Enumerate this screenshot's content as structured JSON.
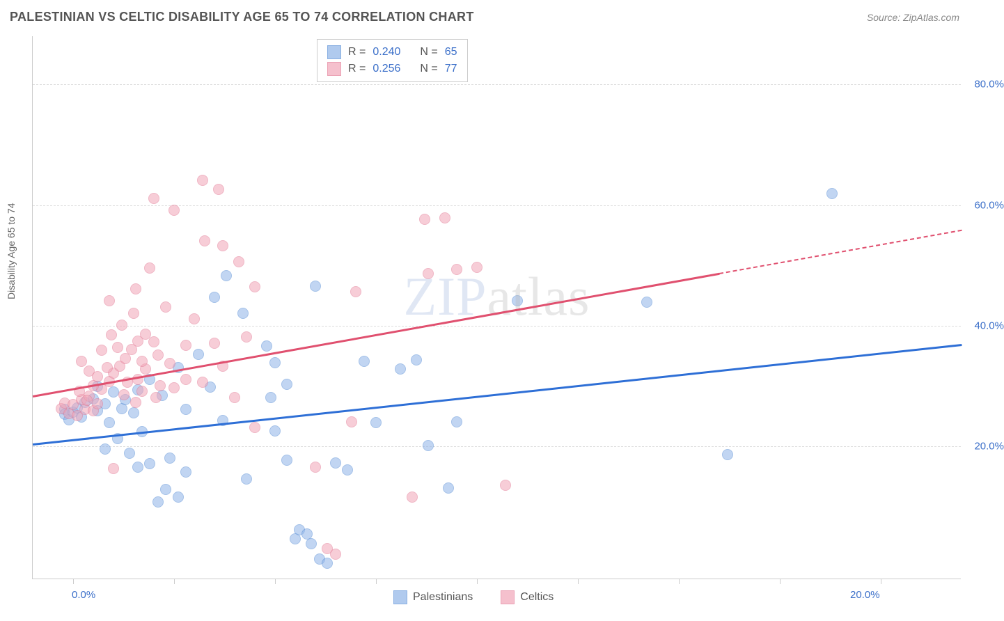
{
  "header": {
    "title": "PALESTINIAN VS CELTIC DISABILITY AGE 65 TO 74 CORRELATION CHART",
    "source": "Source: ZipAtlas.com"
  },
  "chart": {
    "type": "scatter",
    "ylabel": "Disability Age 65 to 74",
    "xlim": [
      -1,
      22
    ],
    "ylim": [
      -2,
      88
    ],
    "xticks": [
      0,
      2.5,
      5,
      7.5,
      10,
      12.5,
      15,
      17.5,
      20
    ],
    "xtick_labels": {
      "0": "0.0%",
      "20": "20.0%"
    },
    "yticks": [
      20,
      40,
      60,
      80
    ],
    "ytick_labels": {
      "20": "20.0%",
      "40": "40.0%",
      "60": "60.0%",
      "80": "80.0%"
    },
    "grid_color": "#dddddd",
    "background_color": "#ffffff",
    "axis_color": "#cccccc",
    "tick_label_color": "#3b6fc9",
    "tick_label_fontsize": 15,
    "axis_label_fontsize": 14,
    "marker_radius": 8,
    "marker_opacity": 0.55,
    "watermark": "ZIPatlas",
    "series": [
      {
        "name": "Palestinians",
        "color_fill": "#8fb4e8",
        "color_stroke": "#5a8fd6",
        "trend_color": "#2e6fd6",
        "trend": {
          "x1": -1,
          "y1": 20.5,
          "x2": 22,
          "y2": 37,
          "solid_until_x": 22
        },
        "legend_stats": {
          "R": "0.240",
          "N": "65"
        },
        "points": [
          [
            -0.2,
            26
          ],
          [
            -0.2,
            25.2
          ],
          [
            -0.1,
            24.3
          ],
          [
            0.0,
            25.6
          ],
          [
            0.1,
            26.3
          ],
          [
            0.2,
            24.8
          ],
          [
            0.3,
            27.2
          ],
          [
            0.5,
            27.8
          ],
          [
            0.6,
            25.8
          ],
          [
            0.8,
            27.0
          ],
          [
            0.9,
            23.8
          ],
          [
            1.0,
            28.9
          ],
          [
            1.2,
            26.2
          ],
          [
            1.3,
            27.6
          ],
          [
            1.5,
            25.5
          ],
          [
            1.6,
            29.3
          ],
          [
            0.8,
            19.5
          ],
          [
            1.1,
            21.2
          ],
          [
            1.4,
            18.8
          ],
          [
            1.7,
            22.4
          ],
          [
            1.9,
            17.0
          ],
          [
            2.1,
            10.7
          ],
          [
            2.3,
            12.8
          ],
          [
            2.6,
            11.5
          ],
          [
            2.8,
            15.6
          ],
          [
            1.6,
            16.5
          ],
          [
            2.2,
            28.4
          ],
          [
            2.6,
            33.0
          ],
          [
            2.8,
            26.0
          ],
          [
            3.1,
            35.2
          ],
          [
            3.4,
            29.7
          ],
          [
            3.5,
            44.6
          ],
          [
            3.8,
            48.2
          ],
          [
            4.2,
            42.0
          ],
          [
            4.8,
            36.5
          ],
          [
            5.0,
            22.5
          ],
          [
            5.3,
            17.6
          ],
          [
            5.5,
            4.6
          ],
          [
            5.6,
            6.1
          ],
          [
            5.8,
            5.4
          ],
          [
            5.9,
            3.8
          ],
          [
            6.1,
            1.2
          ],
          [
            6.3,
            0.5
          ],
          [
            5.0,
            33.8
          ],
          [
            5.3,
            30.2
          ],
          [
            6.0,
            46.5
          ],
          [
            6.5,
            17.2
          ],
          [
            6.8,
            16.0
          ],
          [
            7.2,
            34.0
          ],
          [
            7.5,
            23.8
          ],
          [
            8.1,
            32.7
          ],
          [
            8.5,
            34.2
          ],
          [
            8.8,
            20.0
          ],
          [
            9.3,
            13.0
          ],
          [
            9.5,
            24.0
          ],
          [
            11.0,
            44.0
          ],
          [
            14.2,
            43.8
          ],
          [
            16.2,
            18.5
          ],
          [
            18.8,
            61.8
          ],
          [
            4.3,
            14.5
          ],
          [
            3.7,
            24.2
          ],
          [
            4.9,
            28.0
          ],
          [
            0.6,
            29.8
          ],
          [
            1.9,
            31.0
          ],
          [
            2.4,
            18.0
          ]
        ]
      },
      {
        "name": "Celtics",
        "color_fill": "#f2a6b8",
        "color_stroke": "#e37b96",
        "trend_color": "#e0506f",
        "trend": {
          "x1": -1,
          "y1": 28.5,
          "x2": 22,
          "y2": 56,
          "solid_until_x": 16
        },
        "legend_stats": {
          "R": "0.256",
          "N": "77"
        },
        "points": [
          [
            -0.3,
            26.2
          ],
          [
            -0.2,
            27.1
          ],
          [
            -0.1,
            25.4
          ],
          [
            0.0,
            26.8
          ],
          [
            0.1,
            25.0
          ],
          [
            0.2,
            27.6
          ],
          [
            0.3,
            26.0
          ],
          [
            0.4,
            28.2
          ],
          [
            0.5,
            25.8
          ],
          [
            0.6,
            27.0
          ],
          [
            0.7,
            29.4
          ],
          [
            0.9,
            30.6
          ],
          [
            1.0,
            32.0
          ],
          [
            1.15,
            33.2
          ],
          [
            1.3,
            34.5
          ],
          [
            1.45,
            36.0
          ],
          [
            1.6,
            37.4
          ],
          [
            0.7,
            35.8
          ],
          [
            0.95,
            38.4
          ],
          [
            1.2,
            40.0
          ],
          [
            1.5,
            42.0
          ],
          [
            1.8,
            38.5
          ],
          [
            2.0,
            37.2
          ],
          [
            1.6,
            31.0
          ],
          [
            1.8,
            32.7
          ],
          [
            2.1,
            35.0
          ],
          [
            2.5,
            29.6
          ],
          [
            2.8,
            31.0
          ],
          [
            3.2,
            30.5
          ],
          [
            0.4,
            32.4
          ],
          [
            1.55,
            46.0
          ],
          [
            2.0,
            61.0
          ],
          [
            2.5,
            59.0
          ],
          [
            3.2,
            64.0
          ],
          [
            3.6,
            62.5
          ],
          [
            3.25,
            54.0
          ],
          [
            3.7,
            53.2
          ],
          [
            4.1,
            50.5
          ],
          [
            4.5,
            46.3
          ],
          [
            0.9,
            44.0
          ],
          [
            2.3,
            43.0
          ],
          [
            3.0,
            41.0
          ],
          [
            3.7,
            33.2
          ],
          [
            4.0,
            28.0
          ],
          [
            4.5,
            23.0
          ],
          [
            6.0,
            16.5
          ],
          [
            6.3,
            3.0
          ],
          [
            6.5,
            2.0
          ],
          [
            6.9,
            24.0
          ],
          [
            7.0,
            45.5
          ],
          [
            8.7,
            57.5
          ],
          [
            9.2,
            57.8
          ],
          [
            8.8,
            48.5
          ],
          [
            9.5,
            49.2
          ],
          [
            10.0,
            49.6
          ],
          [
            8.4,
            11.5
          ],
          [
            10.7,
            13.5
          ],
          [
            1.0,
            16.2
          ],
          [
            0.5,
            30.0
          ],
          [
            1.25,
            28.5
          ],
          [
            2.4,
            33.6
          ],
          [
            2.8,
            36.7
          ],
          [
            0.2,
            34.0
          ],
          [
            1.9,
            49.5
          ],
          [
            1.1,
            36.3
          ],
          [
            1.7,
            29.0
          ],
          [
            2.15,
            30.0
          ],
          [
            0.85,
            33.0
          ],
          [
            1.35,
            30.5
          ],
          [
            1.7,
            34.0
          ],
          [
            0.15,
            29.0
          ],
          [
            0.6,
            31.5
          ],
          [
            1.55,
            27.2
          ],
          [
            2.05,
            28.0
          ],
          [
            0.35,
            27.5
          ],
          [
            3.5,
            37.0
          ],
          [
            4.3,
            38.0
          ]
        ]
      }
    ]
  }
}
